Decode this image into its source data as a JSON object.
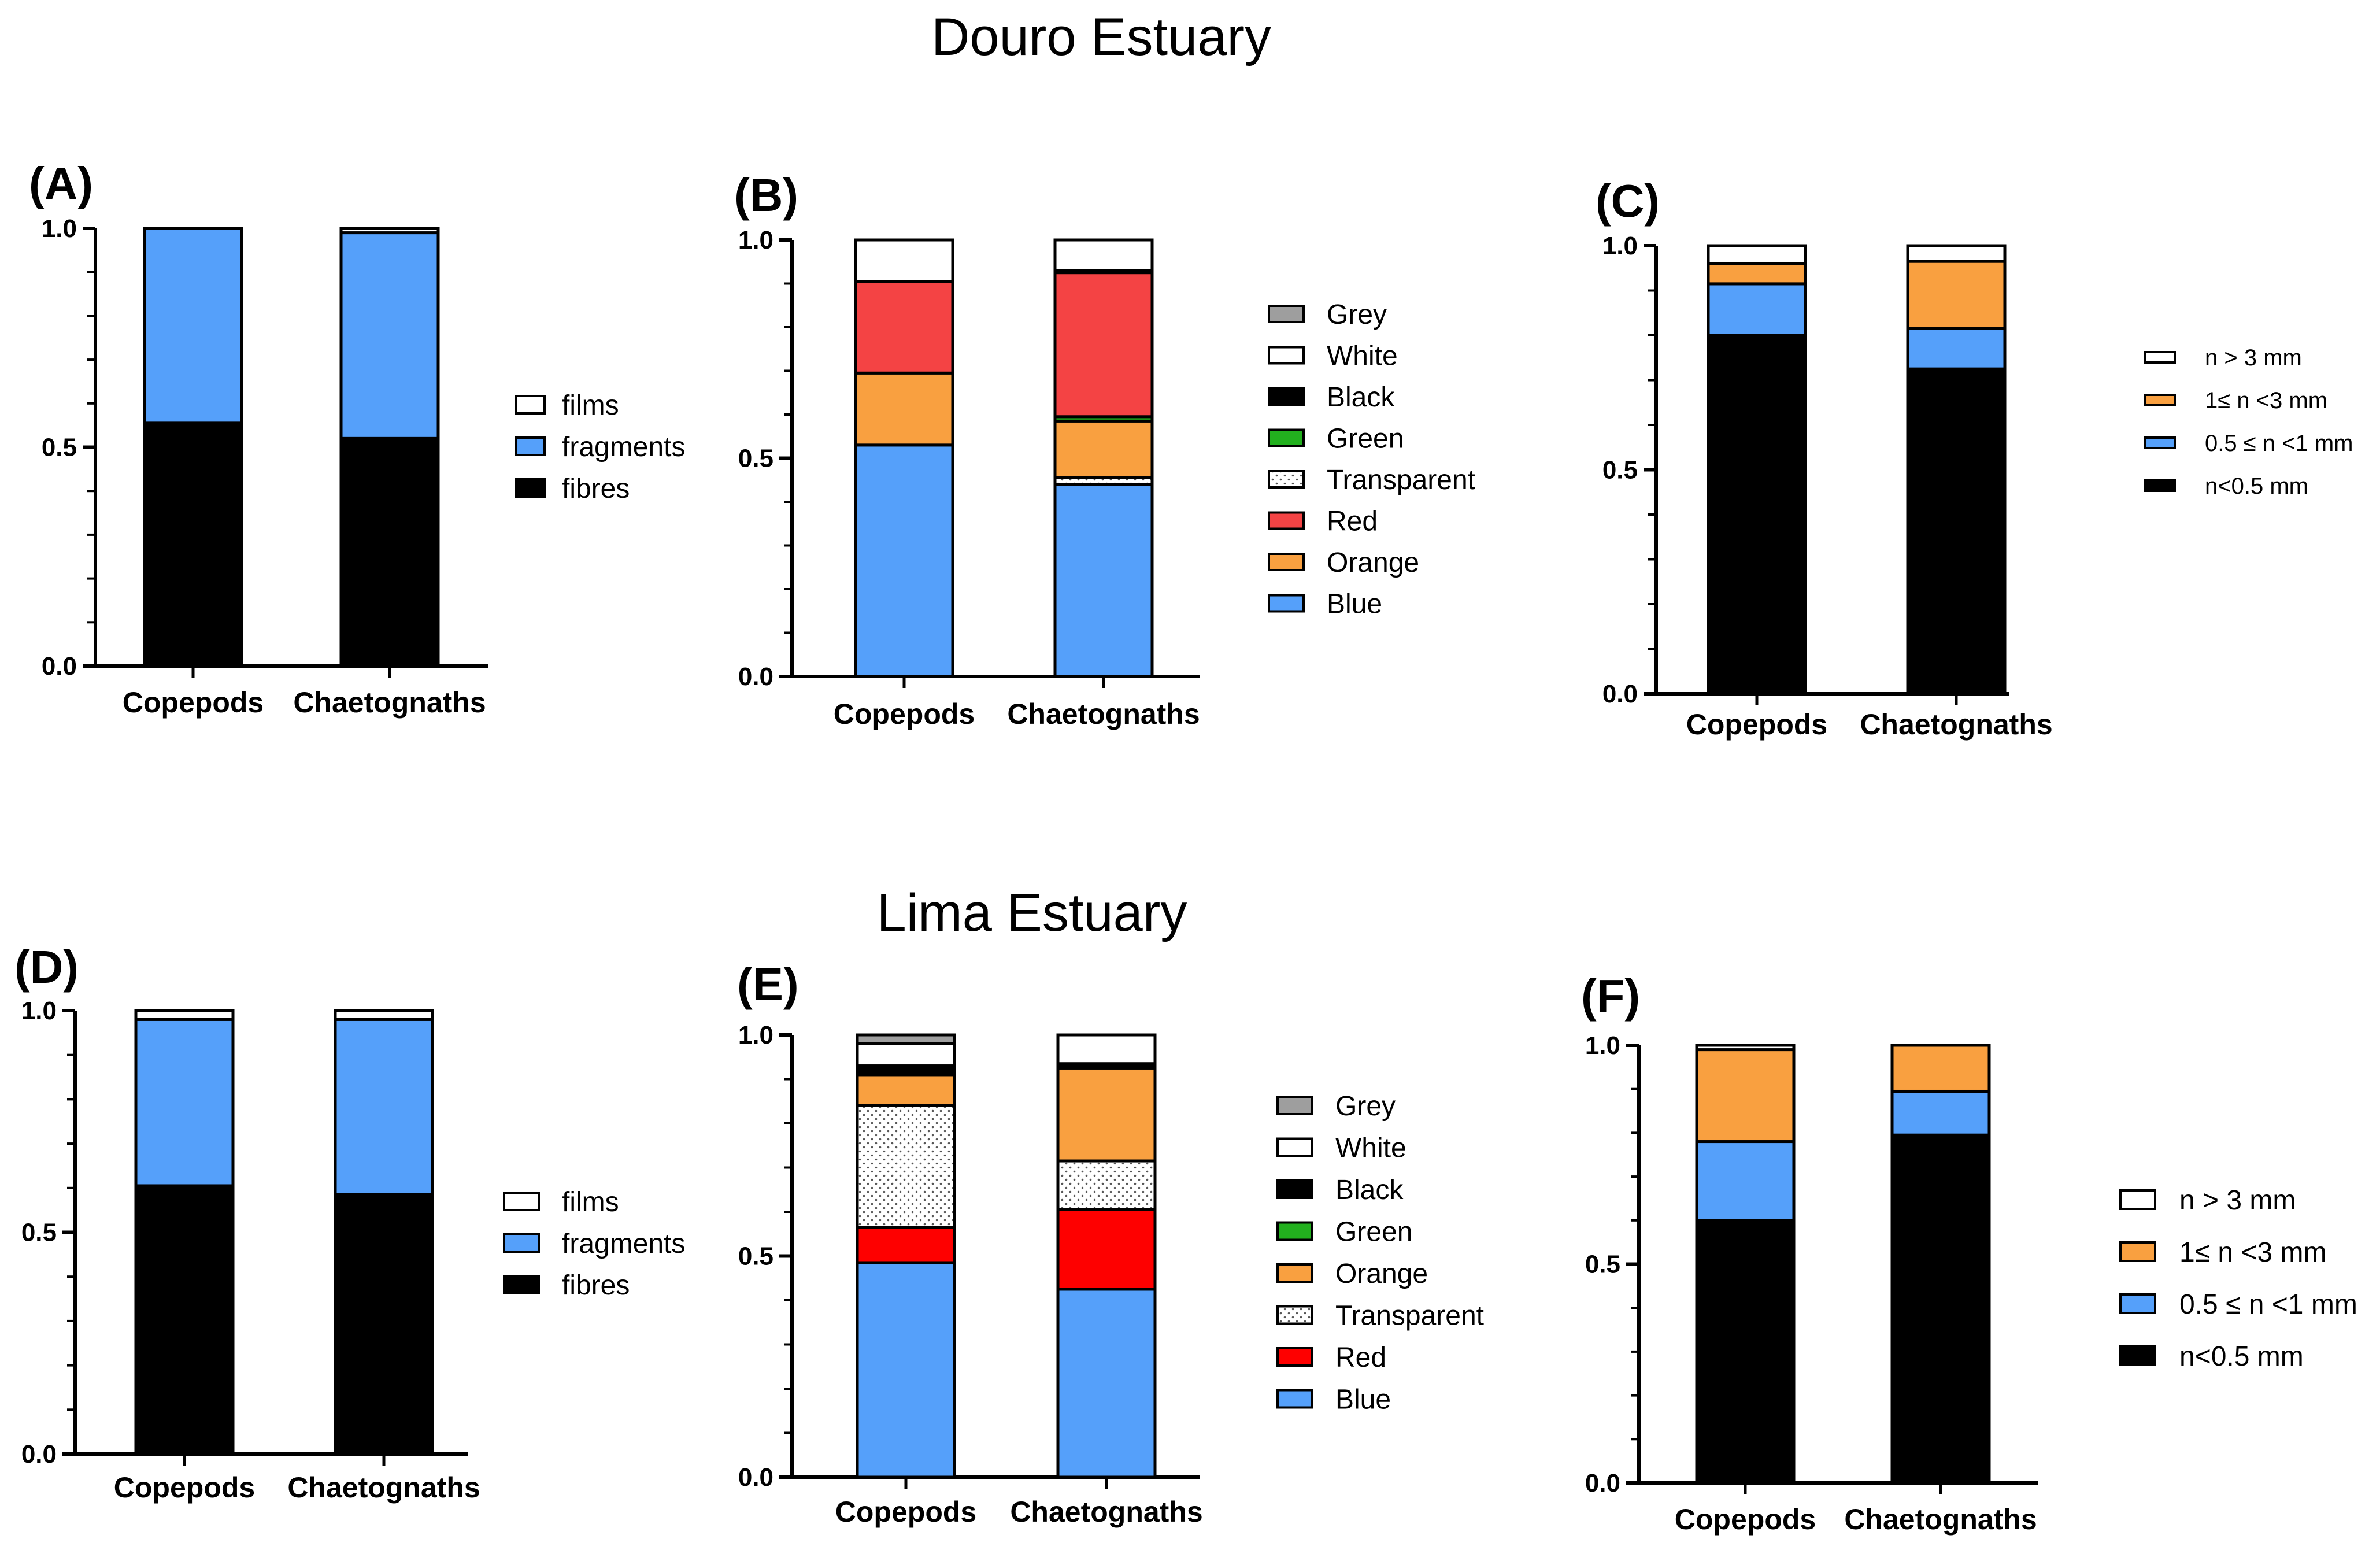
{
  "section_titles": {
    "douro": "Douro Estuary",
    "lima": "Lima Estuary"
  },
  "colors": {
    "Grey": "#9e9e9e",
    "White": "#ffffff",
    "Black": "#000000",
    "Green": "#22b01e",
    "Transparent": "pattern",
    "Red_B": "#f44344",
    "Red_E": "#fe0000",
    "Orange": "#f9a040",
    "Blue": "#55a0fa"
  },
  "chart_data": [
    {
      "id": "A",
      "label": "(A)",
      "type": "bar",
      "stacked": true,
      "categories": [
        "Copepods",
        "Chaetognaths"
      ],
      "yticks": [
        "0.0",
        "0.5",
        "1.0"
      ],
      "ylim": [
        0,
        1
      ],
      "series": [
        {
          "name": "fibres",
          "color": "#000000",
          "values": [
            0.555,
            0.52
          ]
        },
        {
          "name": "fragments",
          "color": "#55a0fa",
          "values": [
            0.445,
            0.47
          ]
        },
        {
          "name": "films",
          "color": "#ffffff",
          "values": [
            0.0,
            0.01
          ]
        }
      ],
      "legend": [
        "films",
        "fragments",
        "fibres"
      ]
    },
    {
      "id": "B",
      "label": "(B)",
      "type": "bar",
      "stacked": true,
      "categories": [
        "Copepods",
        "Chaetognaths"
      ],
      "yticks": [
        "0.0",
        "0.5",
        "1.0"
      ],
      "ylim": [
        0,
        1
      ],
      "series": [
        {
          "name": "Blue",
          "color": "#55a0fa",
          "values": [
            0.53,
            0.44
          ]
        },
        {
          "name": "Transparent",
          "color": "pattern",
          "values": [
            0.0,
            0.015
          ]
        },
        {
          "name": "Orange",
          "color": "#f9a040",
          "values": [
            0.165,
            0.13
          ]
        },
        {
          "name": "Green",
          "color": "#22b01e",
          "values": [
            0.0,
            0.01
          ]
        },
        {
          "name": "Red",
          "color": "#f44344",
          "values": [
            0.21,
            0.33
          ]
        },
        {
          "name": "Black",
          "color": "#000000",
          "values": [
            0.0,
            0.005
          ]
        },
        {
          "name": "White",
          "color": "#ffffff",
          "values": [
            0.095,
            0.07
          ]
        }
      ],
      "legend": [
        "Grey",
        "White",
        "Black",
        "Green",
        "Transparent",
        "Red",
        "Orange",
        "Blue"
      ]
    },
    {
      "id": "C",
      "label": "(C)",
      "type": "bar",
      "stacked": true,
      "categories": [
        "Copepods",
        "Chaetognaths"
      ],
      "yticks": [
        "0.0",
        "0.5",
        "1.0"
      ],
      "ylim": [
        0,
        1
      ],
      "series": [
        {
          "name": "n<0.5 mm",
          "color": "#000000",
          "values": [
            0.8,
            0.725
          ]
        },
        {
          "name": "0.5 ≤ n <1 mm",
          "color": "#55a0fa",
          "values": [
            0.115,
            0.09
          ]
        },
        {
          "name": "1≤ n <3 mm",
          "color": "#f9a040",
          "values": [
            0.045,
            0.15
          ]
        },
        {
          "name": "n > 3 mm",
          "color": "#ffffff",
          "values": [
            0.04,
            0.035
          ]
        }
      ],
      "legend": [
        "n > 3 mm",
        "1≤ n <3 mm",
        "0.5 ≤ n <1 mm",
        "n<0.5 mm"
      ]
    },
    {
      "id": "D",
      "label": "(D)",
      "type": "bar",
      "stacked": true,
      "categories": [
        "Copepods",
        "Chaetognaths"
      ],
      "yticks": [
        "0.0",
        "0.5",
        "1.0"
      ],
      "ylim": [
        0,
        1
      ],
      "series": [
        {
          "name": "fibres",
          "color": "#000000",
          "values": [
            0.605,
            0.585
          ]
        },
        {
          "name": "fragments",
          "color": "#55a0fa",
          "values": [
            0.375,
            0.395
          ]
        },
        {
          "name": "films",
          "color": "#ffffff",
          "values": [
            0.02,
            0.02
          ]
        }
      ],
      "legend": [
        "films",
        "fragments",
        "fibres"
      ]
    },
    {
      "id": "E",
      "label": "(E)",
      "type": "bar",
      "stacked": true,
      "categories": [
        "Copepods",
        "Chaetognaths"
      ],
      "yticks": [
        "0.0",
        "0.5",
        "1.0"
      ],
      "ylim": [
        0,
        1
      ],
      "series": [
        {
          "name": "Blue",
          "color": "#55a0fa",
          "values": [
            0.485,
            0.425
          ]
        },
        {
          "name": "Red",
          "color": "#fe0000",
          "values": [
            0.08,
            0.18
          ]
        },
        {
          "name": "Transparent",
          "color": "pattern",
          "values": [
            0.275,
            0.11
          ]
        },
        {
          "name": "Orange",
          "color": "#f9a040",
          "values": [
            0.07,
            0.21
          ]
        },
        {
          "name": "Green",
          "color": "#22b01e",
          "values": [
            0.0,
            0.0
          ]
        },
        {
          "name": "Black",
          "color": "#000000",
          "values": [
            0.02,
            0.01
          ]
        },
        {
          "name": "White",
          "color": "#ffffff",
          "values": [
            0.05,
            0.065
          ]
        },
        {
          "name": "Grey",
          "color": "#9e9e9e",
          "values": [
            0.02,
            0.0
          ]
        }
      ],
      "legend": [
        "Grey",
        "White",
        "Black",
        "Green",
        "Orange",
        "Transparent",
        "Red",
        "Blue"
      ]
    },
    {
      "id": "F",
      "label": "(F)",
      "type": "bar",
      "stacked": true,
      "categories": [
        "Copepods",
        "Chaetognaths"
      ],
      "yticks": [
        "0.0",
        "0.5",
        "1.0"
      ],
      "ylim": [
        0,
        1
      ],
      "series": [
        {
          "name": "n<0.5 mm",
          "color": "#000000",
          "values": [
            0.6,
            0.795
          ]
        },
        {
          "name": "0.5 ≤ n <1 mm",
          "color": "#55a0fa",
          "values": [
            0.18,
            0.1
          ]
        },
        {
          "name": "1≤ n <3 mm",
          "color": "#f9a040",
          "values": [
            0.21,
            0.105
          ]
        },
        {
          "name": "n > 3 mm",
          "color": "#ffffff",
          "values": [
            0.01,
            0.0
          ]
        }
      ],
      "legend": [
        "n > 3 mm",
        "1≤ n <3 mm",
        "0.5 ≤ n <1 mm",
        "n<0.5 mm"
      ]
    }
  ]
}
